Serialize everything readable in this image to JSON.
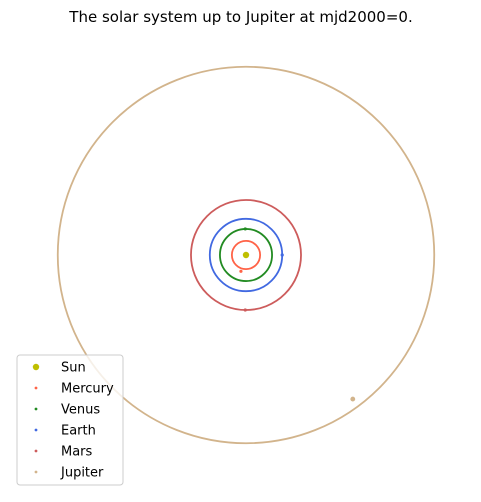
{
  "chart_data": {
    "type": "scatter",
    "title": "The solar system up to Jupiter at mjd2000=0.",
    "xlabel": "",
    "ylabel": "",
    "axes_visible": false,
    "aspect": "equal",
    "xlim": [
      -5.3,
      5.3
    ],
    "ylim": [
      -5.3,
      5.3
    ],
    "legend_position": "lower-left",
    "series": [
      {
        "name": "Sun",
        "kind": "point",
        "color": "#bfbf00",
        "x": 0,
        "y": 0,
        "orbit_radius": 0
      },
      {
        "name": "Mercury",
        "kind": "orbit",
        "color": "#ff6347",
        "x": -0.14,
        "y": -0.45,
        "orbit_radius": 0.39
      },
      {
        "name": "Venus",
        "kind": "orbit",
        "color": "#228b22",
        "x": -0.02,
        "y": 0.72,
        "orbit_radius": 0.72
      },
      {
        "name": "Earth",
        "kind": "orbit",
        "color": "#4169e1",
        "x": 1.0,
        "y": 0.0,
        "orbit_radius": 1.0
      },
      {
        "name": "Mars",
        "kind": "orbit",
        "color": "#cd5c5c",
        "x": -0.02,
        "y": -1.52,
        "orbit_radius": 1.52
      },
      {
        "name": "Jupiter",
        "kind": "orbit",
        "color": "#d2b48c",
        "x": 2.95,
        "y": -3.98,
        "orbit_radius": 5.2
      }
    ]
  }
}
